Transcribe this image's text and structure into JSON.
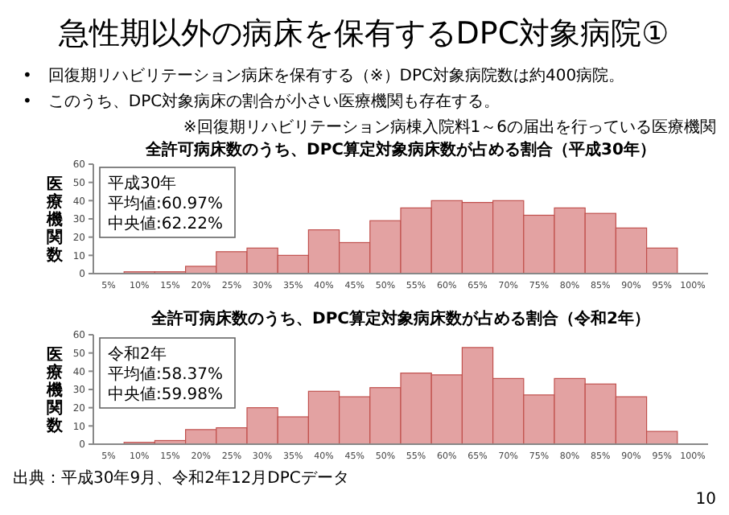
{
  "chart_data": [
    {
      "type": "bar",
      "title": "全許可病床数のうち、DPC算定対象病床数が占める割合（平成30年）",
      "ylabel": "医療機関数",
      "categories": [
        "5%",
        "10%",
        "15%",
        "20%",
        "25%",
        "30%",
        "35%",
        "40%",
        "45%",
        "50%",
        "55%",
        "60%",
        "65%",
        "70%",
        "75%",
        "80%",
        "85%",
        "90%",
        "95%",
        "100%"
      ],
      "series": [
        {
          "color": "#e3a2a2",
          "values": [
            0,
            1,
            1,
            4,
            12,
            14,
            10,
            24,
            17,
            29,
            36,
            40,
            39,
            40,
            32,
            36,
            33,
            25,
            14,
            0
          ]
        }
      ],
      "ylim": [
        0,
        60
      ],
      "yticks": [
        0,
        10,
        20,
        30,
        40,
        50,
        60
      ],
      "grid": false,
      "annotations": [
        "急性期以外の病床を保有するDPC対象病院①",
        "•　回復期リハビリテーション病床を保有する（※）DPC対象病院数は約400病院。",
        "•　このうち、DPC対象病床の割合が小さい医療機関も存在する。",
        "※回復期リハビリテーション病棟入院料1～6の届出を行っている医療機関",
        "平成30年",
        "平均値:60.97%",
        "中央値:62.22%"
      ]
    },
    {
      "type": "bar",
      "title": "全許可病床数のうち、DPC算定対象病床数が占める割合（令和2年）",
      "ylabel": "医療機関数",
      "categories": [
        "5%",
        "10%",
        "15%",
        "20%",
        "25%",
        "30%",
        "35%",
        "40%",
        "45%",
        "50%",
        "55%",
        "60%",
        "65%",
        "70%",
        "75%",
        "80%",
        "85%",
        "90%",
        "95%",
        "100%"
      ],
      "series": [
        {
          "color": "#e3a2a2",
          "values": [
            0,
            1,
            2,
            8,
            9,
            20,
            15,
            29,
            26,
            31,
            39,
            38,
            53,
            36,
            27,
            36,
            33,
            26,
            7,
            0
          ]
        }
      ],
      "ylim": [
        0,
        60
      ],
      "yticks": [
        0,
        10,
        20,
        30,
        40,
        50,
        60
      ],
      "grid": false,
      "annotations": [
        "令和2年",
        "平均値:58.37%",
        "中央値:59.98%",
        "出典：平成30年9月、令和2年12月DPCデータ",
        "10"
      ]
    }
  ]
}
